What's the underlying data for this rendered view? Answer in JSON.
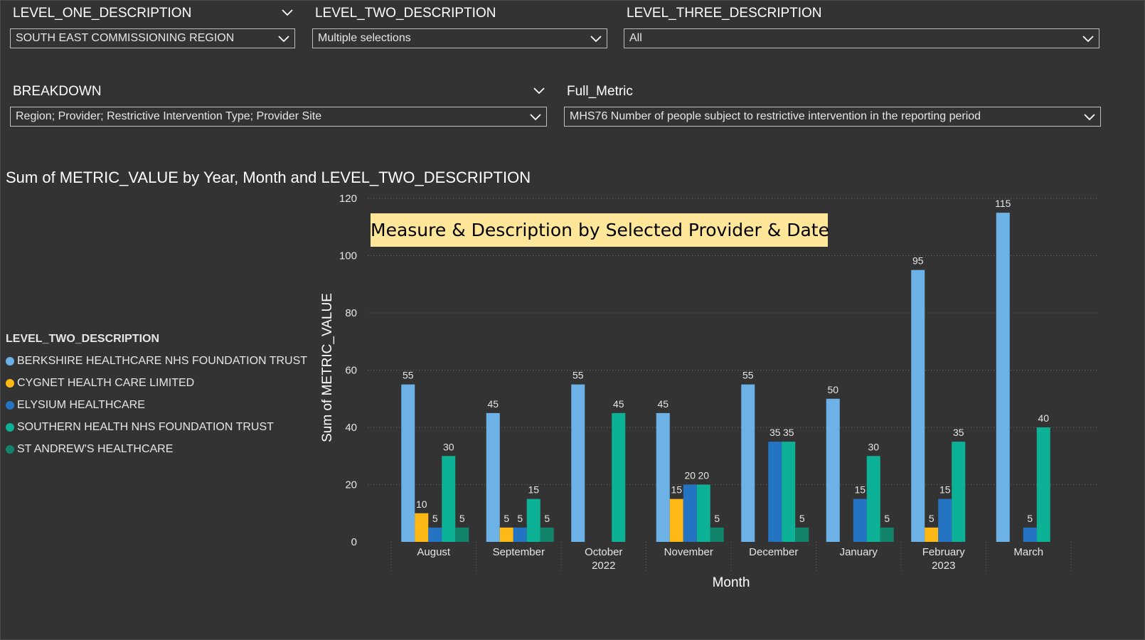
{
  "slicers": {
    "level_one": {
      "title": "LEVEL_ONE_DESCRIPTION",
      "value": "SOUTH EAST COMMISSIONING REGION"
    },
    "level_two": {
      "title": "LEVEL_TWO_DESCRIPTION",
      "value": "Multiple selections"
    },
    "level_three": {
      "title": "LEVEL_THREE_DESCRIPTION",
      "value": "All"
    },
    "breakdown": {
      "title": "BREAKDOWN",
      "value": "Region; Provider; Restrictive Intervention Type; Provider Site"
    },
    "full_metric": {
      "title": "Full_Metric",
      "value": "MHS76 Number of people subject to restrictive intervention in the reporting period"
    }
  },
  "annotation": "Measure & Description by Selected Provider & Date",
  "legend": {
    "title": "LEVEL_TWO_DESCRIPTION",
    "items": [
      {
        "label": "BERKSHIRE HEALTHCARE NHS FOUNDATION TRUST",
        "color": "#6cb2e6"
      },
      {
        "label": "CYGNET HEALTH CARE LIMITED",
        "color": "#ffb917"
      },
      {
        "label": "ELYSIUM HEALTHCARE",
        "color": "#2574c4"
      },
      {
        "label": "SOUTHERN HEALTH NHS FOUNDATION TRUST",
        "color": "#0db196"
      },
      {
        "label": "ST ANDREW'S HEALTHCARE",
        "color": "#12846c"
      }
    ]
  },
  "chart_data": {
    "type": "bar",
    "title": "Sum of METRIC_VALUE by Year, Month and LEVEL_TWO_DESCRIPTION",
    "xlabel": "Month",
    "ylabel": "Sum of METRIC_VALUE",
    "ylim": [
      0,
      120
    ],
    "yticks": [
      0,
      20,
      40,
      60,
      80,
      100,
      120
    ],
    "grid": true,
    "categories": [
      "August",
      "September",
      "October",
      "November",
      "December",
      "January",
      "February",
      "March"
    ],
    "year_labels": [
      {
        "label": "2022",
        "category": "October"
      },
      {
        "label": "2023",
        "category": "February"
      }
    ],
    "series": [
      {
        "name": "BERKSHIRE HEALTHCARE NHS FOUNDATION TRUST",
        "color": "#6cb2e6",
        "values": [
          55,
          45,
          55,
          45,
          55,
          50,
          95,
          115
        ]
      },
      {
        "name": "CYGNET HEALTH CARE LIMITED",
        "color": "#ffb917",
        "values": [
          10,
          5,
          null,
          15,
          null,
          null,
          5,
          null
        ]
      },
      {
        "name": "ELYSIUM HEALTHCARE",
        "color": "#2574c4",
        "values": [
          5,
          5,
          null,
          20,
          35,
          15,
          15,
          5
        ]
      },
      {
        "name": "SOUTHERN HEALTH NHS FOUNDATION TRUST",
        "color": "#0db196",
        "values": [
          30,
          15,
          45,
          20,
          35,
          30,
          35,
          40
        ]
      },
      {
        "name": "ST ANDREW'S HEALTHCARE",
        "color": "#12846c",
        "values": [
          5,
          5,
          null,
          5,
          5,
          5,
          null,
          null
        ]
      }
    ]
  }
}
